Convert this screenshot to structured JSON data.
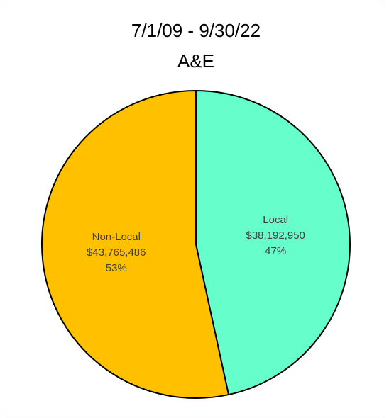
{
  "chart_data": {
    "type": "pie",
    "title": "7/1/09 - 9/30/22",
    "subtitle": "A&E",
    "categories": [
      "Local",
      "Non-Local"
    ],
    "values": [
      38192950,
      43765486
    ],
    "value_labels": [
      "$38,192,950",
      "$43,765,486"
    ],
    "percents": [
      47,
      53
    ],
    "percent_labels": [
      "47%",
      "53%"
    ],
    "colors": [
      "#66FFCC",
      "#FFC000"
    ]
  }
}
